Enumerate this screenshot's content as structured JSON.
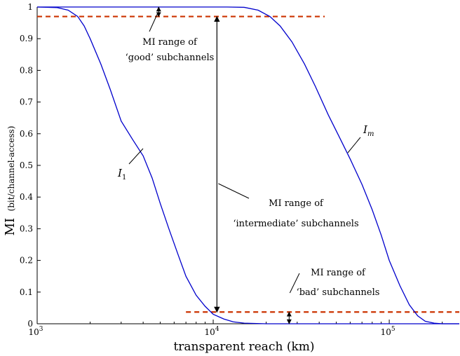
{
  "chart_data": {
    "type": "line",
    "xscale": "log",
    "xlim": [
      1000,
      250000
    ],
    "ylim": [
      0,
      1
    ],
    "xlabel": "transparent reach (km)",
    "ylabel_main": "MI",
    "ylabel_sub": "(bit/channel-access)",
    "x_ticks": [
      {
        "value": 1000,
        "base": "10",
        "exp": "3"
      },
      {
        "value": 10000,
        "base": "10",
        "exp": "4"
      },
      {
        "value": 100000,
        "base": "10",
        "exp": "5"
      }
    ],
    "y_ticks": [
      {
        "value": 0,
        "label": "0"
      },
      {
        "value": 0.1,
        "label": "0.1"
      },
      {
        "value": 0.2,
        "label": "0.2"
      },
      {
        "value": 0.3,
        "label": "0.3"
      },
      {
        "value": 0.4,
        "label": "0.4"
      },
      {
        "value": 0.5,
        "label": "0.5"
      },
      {
        "value": 0.6,
        "label": "0.6"
      },
      {
        "value": 0.7,
        "label": "0.7"
      },
      {
        "value": 0.8,
        "label": "0.8"
      },
      {
        "value": 0.9,
        "label": "0.9"
      },
      {
        "value": 1,
        "label": "1"
      }
    ],
    "series": [
      {
        "name": "I_1",
        "label_main": "I",
        "label_sub": "1",
        "color": "#0000cc",
        "points": [
          [
            1000,
            1.0
          ],
          [
            1300,
            0.998
          ],
          [
            1500,
            0.99
          ],
          [
            1700,
            0.97
          ],
          [
            1850,
            0.94
          ],
          [
            2000,
            0.9
          ],
          [
            2300,
            0.82
          ],
          [
            2600,
            0.74
          ],
          [
            3000,
            0.64
          ],
          [
            3500,
            0.58
          ],
          [
            4000,
            0.53
          ],
          [
            4500,
            0.46
          ],
          [
            5000,
            0.38
          ],
          [
            5600,
            0.3
          ],
          [
            6300,
            0.22
          ],
          [
            7000,
            0.15
          ],
          [
            8000,
            0.09
          ],
          [
            9000,
            0.055
          ],
          [
            10000,
            0.03
          ],
          [
            11500,
            0.015
          ],
          [
            13000,
            0.006
          ],
          [
            15000,
            0.002
          ],
          [
            20000,
            0.0
          ],
          [
            250000,
            0.0
          ]
        ]
      },
      {
        "name": "I_m",
        "label_main": "I",
        "label_sub": "m",
        "color": "#0000cc",
        "points": [
          [
            1000,
            1.0
          ],
          [
            12000,
            1.0
          ],
          [
            15000,
            0.999
          ],
          [
            18000,
            0.99
          ],
          [
            21000,
            0.97
          ],
          [
            24000,
            0.94
          ],
          [
            28000,
            0.89
          ],
          [
            33000,
            0.82
          ],
          [
            38000,
            0.75
          ],
          [
            45000,
            0.66
          ],
          [
            52000,
            0.59
          ],
          [
            60000,
            0.52
          ],
          [
            70000,
            0.44
          ],
          [
            80000,
            0.36
          ],
          [
            90000,
            0.28
          ],
          [
            100000,
            0.2
          ],
          [
            115000,
            0.12
          ],
          [
            130000,
            0.06
          ],
          [
            145000,
            0.025
          ],
          [
            160000,
            0.008
          ],
          [
            180000,
            0.002
          ],
          [
            200000,
            0.0
          ],
          [
            250000,
            0.0
          ]
        ]
      }
    ],
    "thresholds": [
      {
        "name": "good",
        "y": 0.97,
        "x_range": [
          1000,
          43000
        ],
        "color": "#cc3300"
      },
      {
        "name": "bad",
        "y": 0.037,
        "x_range": [
          7000,
          250000
        ],
        "color": "#cc3300"
      }
    ],
    "annotations": {
      "good": {
        "line1": "MI range of",
        "line2": "‘good’ subchannels"
      },
      "intermediate": {
        "line1": "MI range of",
        "line2": "‘intermediate’ subchannels"
      },
      "bad": {
        "line1": "MI range of",
        "line2": "‘bad’ subchannels"
      }
    }
  }
}
